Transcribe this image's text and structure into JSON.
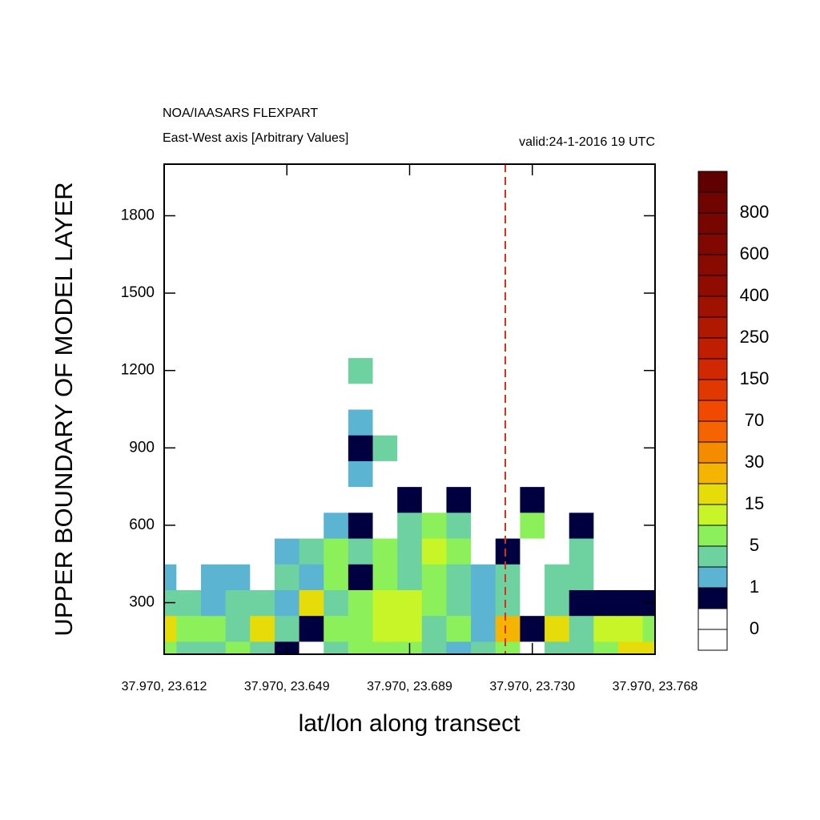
{
  "chart_data": {
    "type": "contour",
    "title": "NOA/IAASARS FLEXPART",
    "subtitle": "East-West axis [Arbitrary Values]",
    "annotation": "valid:24-1-2016 19 UTC",
    "x_label": "lat/lon along transect",
    "y_label": "UPPER BOUNDARY OF MODEL LAYER",
    "xlim": [
      0,
      4
    ],
    "xticks": [
      {
        "value": 0,
        "label": "37.970, 23.612"
      },
      {
        "value": 1,
        "label": "37.970, 23.649"
      },
      {
        "value": 2,
        "label": "37.970, 23.689"
      },
      {
        "value": 3,
        "label": "37.970, 23.730"
      },
      {
        "value": 4,
        "label": "37.970, 23.768"
      }
    ],
    "ylim": [
      100,
      2000
    ],
    "yticks": [
      300,
      600,
      900,
      1200,
      1500,
      1800
    ],
    "marker": {
      "x": 2.78,
      "color": "#d83018"
    },
    "x": [
      0,
      0.2,
      0.4,
      0.6,
      0.8,
      1,
      1.2,
      1.4,
      1.6,
      1.8,
      2,
      2.2,
      2.4,
      2.6,
      2.8,
      3,
      3.2,
      3.4,
      3.6,
      3.8,
      4
    ],
    "y": [
      100,
      200,
      300,
      400,
      500,
      600,
      700,
      800,
      900,
      1000,
      1100,
      1200,
      1300
    ],
    "z": [
      [
        7,
        4,
        4,
        7,
        4,
        0.7,
        0,
        4,
        7,
        7,
        7,
        4,
        2,
        4,
        7,
        0,
        4,
        4,
        7,
        18,
        18
      ],
      [
        18,
        7,
        7,
        4,
        18,
        4,
        0.7,
        7,
        7,
        12,
        12,
        4,
        7,
        2,
        25,
        0.7,
        18,
        4,
        12,
        12,
        7
      ],
      [
        4,
        4,
        2,
        4,
        4,
        2,
        18,
        4,
        7,
        12,
        12,
        7,
        4,
        2,
        4,
        0,
        4,
        0.7,
        0.7,
        0.7,
        0.7
      ],
      [
        2,
        0,
        2,
        2,
        0,
        4,
        2,
        7,
        0.7,
        7,
        4,
        7,
        4,
        2,
        4,
        0,
        4,
        4,
        0,
        0,
        0
      ],
      [
        0,
        0,
        0,
        0,
        0,
        2,
        4,
        7,
        4,
        7,
        4,
        12,
        7,
        0,
        0.7,
        0,
        0,
        4,
        0,
        0,
        0
      ],
      [
        0,
        0,
        0,
        0,
        0,
        0,
        0,
        2,
        0.7,
        0,
        4,
        7,
        4,
        0,
        0,
        7,
        0,
        0.7,
        0,
        0,
        0
      ],
      [
        0,
        0,
        0,
        0,
        0,
        0,
        0,
        0,
        0,
        0,
        0.7,
        0,
        0.7,
        0,
        0,
        0.7,
        0,
        0,
        0,
        0,
        0
      ],
      [
        0,
        0,
        0,
        0,
        0,
        0,
        0,
        0,
        2,
        0,
        0,
        0,
        0,
        0,
        0,
        0,
        0,
        0,
        0,
        0,
        0
      ],
      [
        0,
        0,
        0,
        0,
        0,
        0,
        0,
        0,
        0.7,
        4,
        0,
        0,
        0,
        0,
        0,
        0,
        0,
        0,
        0,
        0,
        0
      ],
      [
        0,
        0,
        0,
        0,
        0,
        0,
        0,
        0,
        2,
        0,
        0,
        0,
        0,
        0,
        0,
        0,
        0,
        0,
        0,
        0,
        0
      ],
      [
        0,
        0,
        0,
        0,
        0,
        0,
        0,
        0,
        0,
        0,
        0,
        0,
        0,
        0,
        0,
        0,
        0,
        0,
        0,
        0,
        0
      ],
      [
        0,
        0,
        0,
        0,
        0,
        0,
        0,
        0,
        4,
        0,
        0,
        0,
        0,
        0,
        0,
        0,
        0,
        0,
        0,
        0,
        0
      ],
      [
        0,
        0,
        0,
        0,
        0,
        0,
        0,
        0,
        0,
        0,
        0,
        0,
        0,
        0,
        0,
        0,
        0,
        0,
        0,
        0,
        0
      ]
    ],
    "colorbar": {
      "colors": [
        "#ffffff",
        "#ffffff",
        "#000040",
        "#5ab4d2",
        "#6ed2a0",
        "#8cf05a",
        "#c8f528",
        "#e6dc0a",
        "#f5b400",
        "#f58c00",
        "#f56400",
        "#f04a00",
        "#e03800",
        "#d02800",
        "#c01e00",
        "#b01800",
        "#a01200",
        "#900c00",
        "#880a00",
        "#800800",
        "#780600",
        "#700400",
        "#600000"
      ],
      "labels": [
        0,
        1,
        5,
        15,
        30,
        70,
        150,
        250,
        400,
        600,
        800
      ]
    }
  }
}
